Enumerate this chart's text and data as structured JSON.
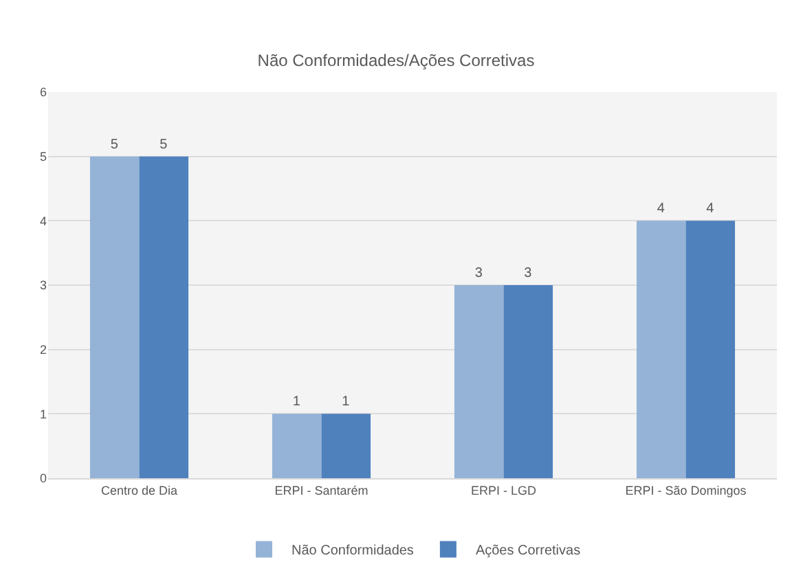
{
  "chart_data": {
    "type": "bar",
    "title": "Não Conformidades/Ações Corretivas",
    "categories": [
      "Centro de Dia",
      "ERPI - Santarém",
      "ERPI - LGD",
      "ERPI - São Domingos"
    ],
    "series": [
      {
        "name": "Não Conformidades",
        "color": "#95b3d7",
        "values": [
          5,
          1,
          3,
          4
        ]
      },
      {
        "name": "Ações Corretivas",
        "color": "#4f81bd",
        "values": [
          5,
          1,
          3,
          4
        ]
      }
    ],
    "ylim": [
      0,
      6
    ],
    "yticks": [
      0,
      1,
      2,
      3,
      4,
      5,
      6
    ],
    "grid": "y",
    "legend": "bottom",
    "data_labels": true
  }
}
